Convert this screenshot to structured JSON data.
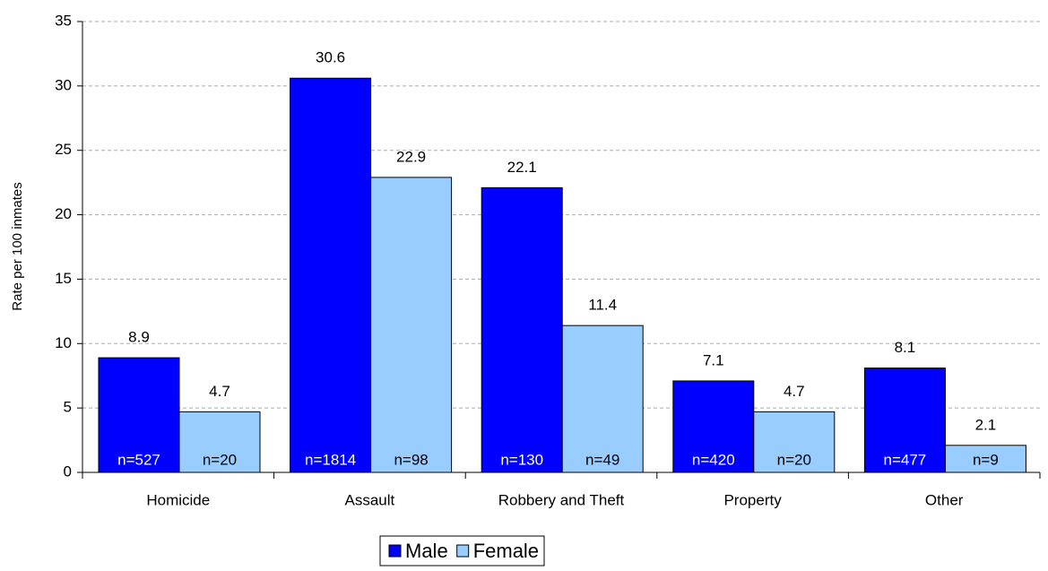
{
  "chart_data": {
    "type": "bar",
    "y_label": "Rate per 100 inmates",
    "categories": [
      "Homicide",
      "Assault",
      "Robbery and Theft",
      "Property",
      "Other"
    ],
    "series": [
      {
        "name": "Male",
        "color": "#0000ff",
        "values": [
          8.9,
          30.6,
          22.1,
          7.1,
          8.1
        ],
        "n_labels": [
          "n=527",
          "n=1814",
          "n=130",
          "n=420",
          "n=477"
        ]
      },
      {
        "name": "Female",
        "color": "#99ccff",
        "values": [
          4.7,
          22.9,
          11.4,
          4.7,
          2.1
        ],
        "n_labels": [
          "n=20",
          "n=98",
          "n=49",
          "n=20",
          "n=9"
        ]
      }
    ],
    "ylim": [
      0,
      35
    ],
    "yticks": [
      0,
      5,
      10,
      15,
      20,
      25,
      30,
      35
    ],
    "grid": true,
    "legend": "bottom"
  }
}
